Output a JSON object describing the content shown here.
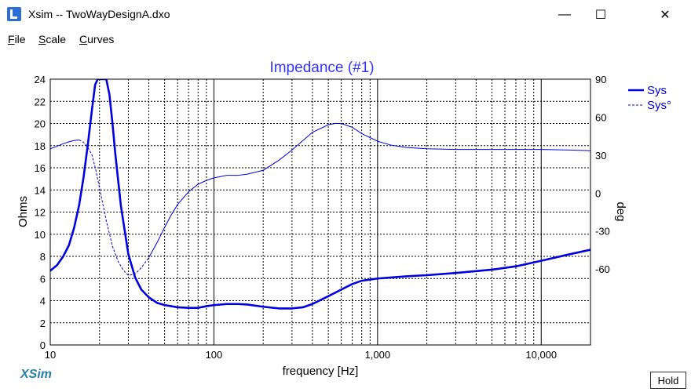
{
  "window": {
    "title": "Xsim -- TwoWayDesignA.dxo",
    "minimize_glyph": "—",
    "maximize_glyph": "☐",
    "close_glyph": "✕"
  },
  "menu": {
    "file": {
      "accel": "F",
      "rest": "ile"
    },
    "scale": {
      "accel": "S",
      "rest": "cale"
    },
    "curves": {
      "accel": "C",
      "rest": "urves"
    }
  },
  "logo_text": "XSim",
  "hold_label": "Hold",
  "colors": {
    "curve": "#0000e0",
    "title": "#3333ff",
    "grid": "#000000",
    "logo": "#2a7fa8"
  },
  "chart_data": {
    "type": "line",
    "title": "Impedance (#1)",
    "xlabel": "frequency [Hz]",
    "ylabel": "Ohms",
    "y2label": "deg",
    "x_scale": "log",
    "xlim": [
      10,
      20000
    ],
    "ylim": [
      0,
      24
    ],
    "y2lim": [
      -120,
      90
    ],
    "x_ticks": [
      {
        "v": 10,
        "label": "10"
      },
      {
        "v": 100,
        "label": "100"
      },
      {
        "v": 1000,
        "label": "1,000"
      },
      {
        "v": 10000,
        "label": "10,000"
      }
    ],
    "y_ticks": [
      0,
      2,
      4,
      6,
      8,
      10,
      12,
      14,
      16,
      18,
      20,
      22,
      24
    ],
    "y2_ticks": [
      -60,
      -30,
      0,
      30,
      60,
      90
    ],
    "grid": true,
    "legend": "top-right",
    "series": [
      {
        "name": "Sys",
        "axis": "left",
        "style": "solid",
        "x": [
          10,
          11,
          12,
          13,
          14,
          15,
          16,
          17,
          18,
          18.8,
          19.5,
          20,
          21,
          22,
          23,
          24,
          25,
          27,
          30,
          33,
          36,
          40,
          45,
          50,
          55,
          60,
          70,
          80,
          90,
          100,
          120,
          140,
          160,
          200,
          250,
          300,
          350,
          400,
          500,
          600,
          700,
          800,
          1000,
          1500,
          2000,
          3000,
          5000,
          7000,
          10000,
          15000,
          20000
        ],
        "y": [
          6.7,
          7.2,
          8.0,
          9.0,
          10.6,
          12.6,
          15.2,
          18.2,
          21.3,
          23.5,
          24.0,
          24.0,
          24.0,
          24.0,
          22.6,
          20.0,
          17.2,
          12.6,
          8.2,
          6.1,
          5.0,
          4.3,
          3.8,
          3.6,
          3.5,
          3.4,
          3.35,
          3.35,
          3.5,
          3.6,
          3.7,
          3.7,
          3.65,
          3.45,
          3.3,
          3.3,
          3.4,
          3.7,
          4.4,
          5.0,
          5.5,
          5.8,
          6.0,
          6.2,
          6.3,
          6.5,
          6.8,
          7.1,
          7.6,
          8.2,
          8.6
        ]
      },
      {
        "name": "Sys°",
        "axis": "right",
        "style": "dashed-then-solid",
        "x": [
          10,
          11,
          12,
          13,
          14,
          15,
          16,
          17,
          18,
          19,
          20,
          22,
          24,
          26,
          28,
          30,
          33,
          36,
          40,
          45,
          50,
          55,
          60,
          70,
          80,
          90,
          100,
          120,
          140,
          160,
          200,
          250,
          300,
          400,
          500,
          550,
          600,
          700,
          800,
          1000,
          1200,
          1500,
          2000,
          3000,
          5000,
          7000,
          10000,
          15000,
          20000
        ],
        "y": [
          35,
          37,
          39,
          40.5,
          41.5,
          42,
          40,
          36,
          30,
          18,
          4,
          -22,
          -42,
          -54,
          -61,
          -65,
          -64,
          -59,
          -51,
          -39,
          -27,
          -17,
          -9,
          1,
          7,
          10,
          12,
          14,
          14,
          15,
          18,
          26,
          34,
          48,
          54,
          55,
          55,
          52,
          47,
          41,
          38,
          36,
          35,
          34.5,
          34.5,
          34.5,
          34.5,
          34,
          33.5
        ]
      }
    ]
  }
}
